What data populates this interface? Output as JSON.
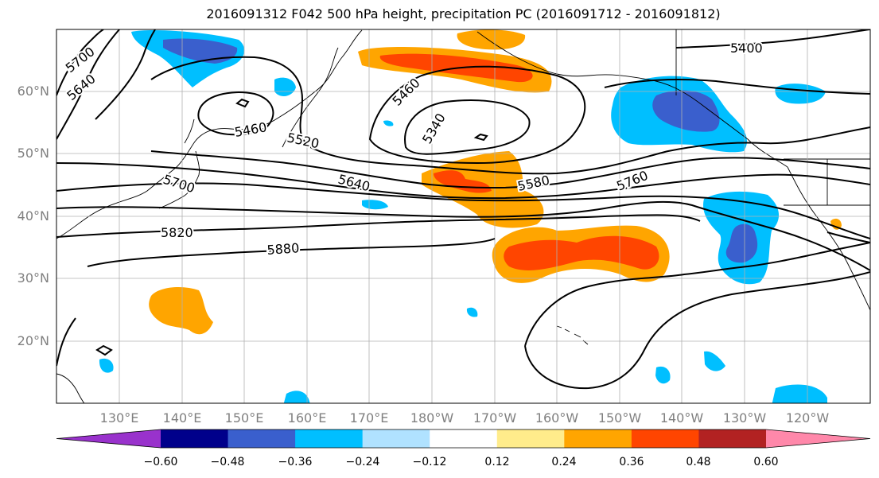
{
  "title": "2016091312 F042 500 hPa height, precipitation PC (2016091712 - 2016091812)",
  "latitude_labels": [
    "60°N",
    "50°N",
    "40°N",
    "30°N",
    "20°N"
  ],
  "longitude_labels": [
    "130°E",
    "140°E",
    "150°E",
    "160°E",
    "170°E",
    "180°W",
    "170°W",
    "160°W",
    "150°W",
    "140°W",
    "130°W",
    "120°W"
  ],
  "height_contour_labels": [
    "5700",
    "5640",
    "5460",
    "5520",
    "5460",
    "5340",
    "5400",
    "5700",
    "5640",
    "5580",
    "5760",
    "5820",
    "5880"
  ],
  "colorbar": {
    "ticks": [
      "−0.60",
      "−0.48",
      "−0.36",
      "−0.24",
      "−0.12",
      "0.12",
      "0.24",
      "0.36",
      "0.48",
      "0.60"
    ],
    "colors": [
      "#9932cc",
      "#00008b",
      "#3a5fcd",
      "#00bfff",
      "#b0e2ff",
      "#ffffff",
      "#ffec8b",
      "#ffa500",
      "#ff4500",
      "#b22222",
      "#ff88aa"
    ]
  },
  "colors": {
    "contour_line": "#000000",
    "grid_line": "#b0b0b0",
    "coastline": "#000000"
  }
}
